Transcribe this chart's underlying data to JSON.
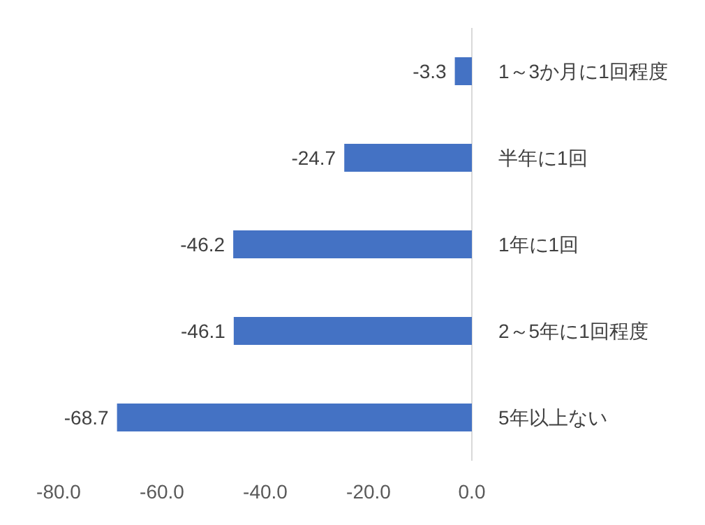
{
  "chart_data": {
    "type": "bar",
    "orientation": "horizontal",
    "categories": [
      "1～3か月に1回程度",
      "半年に1回",
      "1年に1回",
      "2～5年に1回程度",
      "5年以上ない"
    ],
    "values": [
      -3.3,
      -24.7,
      -46.2,
      -46.1,
      -68.7
    ],
    "color": "#4472c4",
    "data_labels": true,
    "xlim": [
      -80,
      0
    ],
    "xticks": [
      {
        "value": -80,
        "label": "-80.0"
      },
      {
        "value": -60,
        "label": "-60.0"
      },
      {
        "value": -40,
        "label": "-40.0"
      },
      {
        "value": -20,
        "label": "-20.0"
      },
      {
        "value": 0,
        "label": "0.0"
      }
    ]
  }
}
